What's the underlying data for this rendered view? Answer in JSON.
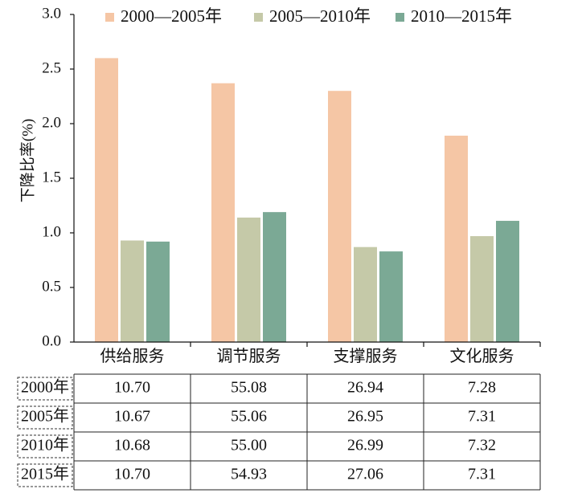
{
  "chart_data": {
    "type": "bar",
    "categories": [
      "供给服务",
      "调节服务",
      "支撑服务",
      "文化服务"
    ],
    "series": [
      {
        "name": "2000—2005年",
        "color": "#F5C6A5",
        "values": [
          2.6,
          2.37,
          2.3,
          1.89
        ]
      },
      {
        "name": "2005—2010年",
        "color": "#C5C9A8",
        "values": [
          0.93,
          1.14,
          0.87,
          0.97
        ]
      },
      {
        "name": "2010—2015年",
        "color": "#7BA995",
        "values": [
          0.92,
          1.19,
          0.83,
          1.11
        ]
      }
    ],
    "ylabel": "下降比率(%)",
    "ylim": [
      0,
      3.0
    ],
    "yticks": [
      "0.0",
      "0.5",
      "1.0",
      "1.5",
      "2.0",
      "2.5",
      "3.0"
    ],
    "legend_position": "top",
    "grid": false
  },
  "table": {
    "rows": [
      {
        "year": "2000年",
        "values": [
          "10.70",
          "55.08",
          "26.94",
          "7.28"
        ]
      },
      {
        "year": "2005年",
        "values": [
          "10.67",
          "55.06",
          "26.95",
          "7.31"
        ]
      },
      {
        "year": "2010年",
        "values": [
          "10.68",
          "55.00",
          "26.99",
          "7.32"
        ]
      },
      {
        "year": "2015年",
        "values": [
          "10.70",
          "54.93",
          "27.06",
          "7.31"
        ]
      }
    ]
  }
}
